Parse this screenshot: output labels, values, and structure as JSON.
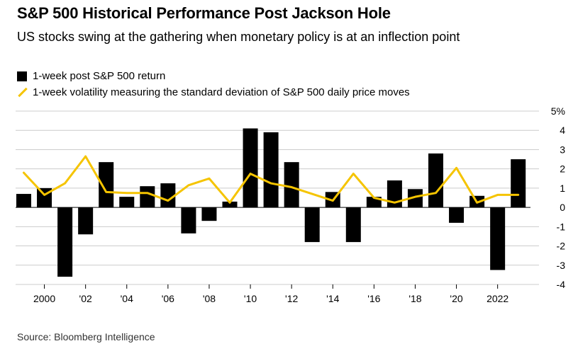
{
  "header": {
    "title": "S&P 500 Historical Performance Post Jackson Hole",
    "subtitle": "US stocks swing at the gathering when monetary policy is at an inflection point"
  },
  "footer": {
    "source": "Source: Bloomberg Intelligence"
  },
  "colors": {
    "bar": "#000000",
    "line": "#f5c400",
    "grid": "#cccccc",
    "zero_line": "#000000"
  },
  "chart_data": {
    "type": "bar",
    "title": "S&P 500 Historical Performance Post Jackson Hole",
    "xlabel": "",
    "ylabel": "",
    "ylim": [
      -4,
      5
    ],
    "yticks": [
      5,
      4,
      3,
      2,
      1,
      0,
      -1,
      -2,
      -3,
      -4
    ],
    "ytick_labels": [
      "5%",
      "4",
      "3",
      "2",
      "1",
      "0",
      "-1",
      "-2",
      "-3",
      "-4"
    ],
    "grid": true,
    "legend_position": "top-left",
    "x": [
      1999,
      2000,
      2001,
      2002,
      2003,
      2004,
      2005,
      2006,
      2007,
      2008,
      2009,
      2010,
      2011,
      2012,
      2013,
      2014,
      2015,
      2016,
      2017,
      2018,
      2019,
      2020,
      2021,
      2022,
      2023
    ],
    "xtick_values": [
      2000,
      2002,
      2004,
      2006,
      2008,
      2010,
      2012,
      2014,
      2016,
      2018,
      2020,
      2022
    ],
    "xtick_labels": [
      "2000",
      "'02",
      "'04",
      "'06",
      "'08",
      "'10",
      "'12",
      "'14",
      "'16",
      "'18",
      "'20",
      "2022"
    ],
    "series": [
      {
        "name": "1-week post S&P 500 return",
        "type": "bar",
        "values": [
          0.7,
          1.0,
          -3.6,
          -1.4,
          2.35,
          0.55,
          1.1,
          1.25,
          -1.35,
          -0.7,
          0.3,
          4.1,
          3.9,
          2.35,
          -1.8,
          0.8,
          -1.8,
          0.55,
          1.4,
          0.95,
          2.8,
          -0.8,
          0.6,
          -3.25,
          2.5
        ]
      },
      {
        "name": "1-week volatility measuring the standard deviation of S&P 500 daily price moves",
        "type": "line",
        "values": [
          1.8,
          0.65,
          1.25,
          2.65,
          0.8,
          0.75,
          0.75,
          0.35,
          1.15,
          1.5,
          0.25,
          1.75,
          1.25,
          1.05,
          0.7,
          0.35,
          1.75,
          0.5,
          0.25,
          0.55,
          0.75,
          2.05,
          0.25,
          0.65,
          0.65
        ]
      }
    ]
  }
}
